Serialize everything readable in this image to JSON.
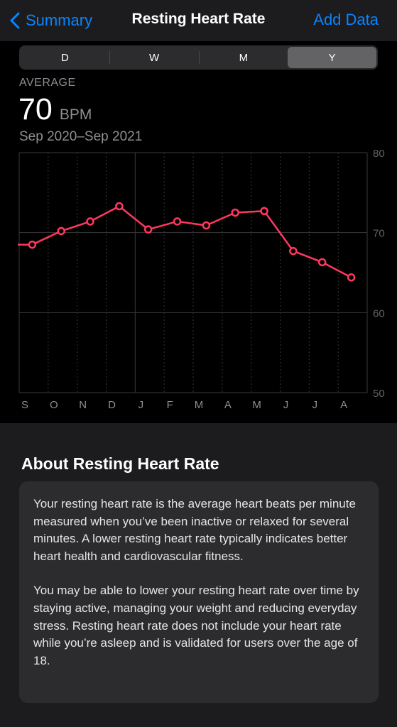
{
  "nav": {
    "back_label": "Summary",
    "title": "Resting Heart Rate",
    "add_label": "Add Data"
  },
  "segments": [
    {
      "label": "D",
      "active": false
    },
    {
      "label": "W",
      "active": false
    },
    {
      "label": "M",
      "active": false
    },
    {
      "label": "Y",
      "active": true
    }
  ],
  "summary": {
    "label": "AVERAGE",
    "value": "70",
    "unit": "BPM",
    "range": "Sep 2020–Sep 2021"
  },
  "chart_data": {
    "type": "line",
    "categories": [
      "S",
      "O",
      "N",
      "D",
      "J",
      "F",
      "M",
      "A",
      "M",
      "J",
      "J",
      "A"
    ],
    "x": [
      "Sep 2020",
      "Oct 2020",
      "Nov 2020",
      "Dec 2020",
      "Jan 2021",
      "Feb 2021",
      "Mar 2021",
      "Apr 2021",
      "May 2021",
      "Jun 2021",
      "Jul 2021",
      "Aug 2021"
    ],
    "values": [
      68.5,
      70.2,
      71.4,
      73.3,
      70.4,
      71.4,
      70.9,
      72.5,
      72.7,
      67.7,
      66.3,
      64.4
    ],
    "series_color": "#ff375f",
    "ylim": [
      50,
      80
    ],
    "yticks": [
      "80",
      "70",
      "60",
      "50"
    ],
    "grid": true
  },
  "about": {
    "title": "About Resting Heart Rate",
    "para1": "Your resting heart rate is the average heart beats per minute measured when you’ve been inactive or relaxed for several minutes. A lower resting heart rate typically indicates better heart health and cardiovascular fitness.",
    "para2": "You may be able to lower your resting heart rate over time by staying active, managing your weight and reducing everyday stress. Resting heart rate does not include your heart rate while you’re asleep and is validated for users over the age of 18."
  },
  "colors": {
    "accent": "#0a84ff",
    "line": "#ff375f"
  }
}
